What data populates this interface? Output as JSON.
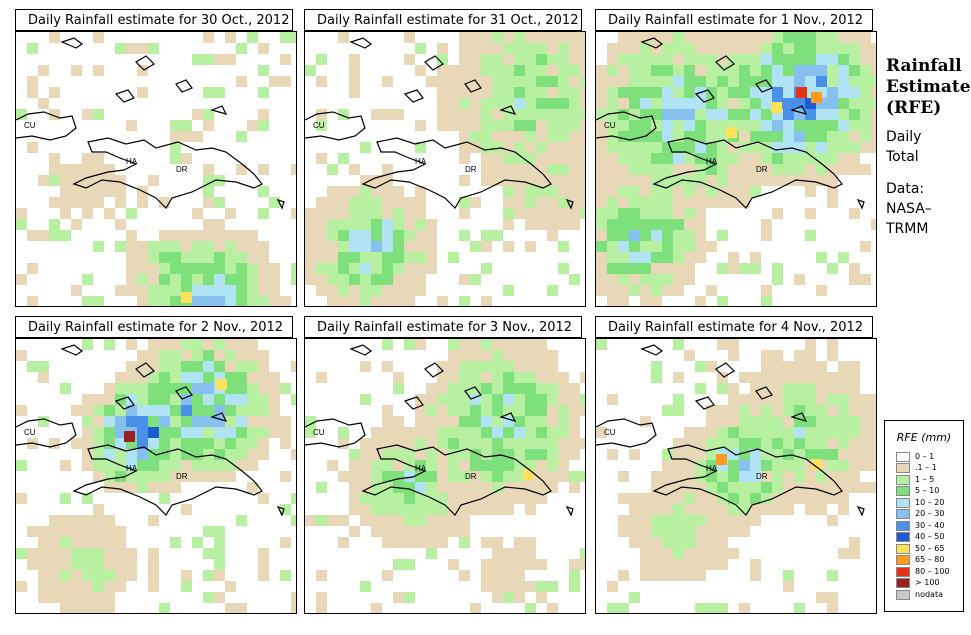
{
  "panels": [
    {
      "title": "Daily Rainfall estimate for  30 Oct., 2012",
      "pattern": "p1"
    },
    {
      "title": "Daily Rainfall estimate for  31 Oct., 2012",
      "pattern": "p2"
    },
    {
      "title": "Daily Rainfall estimate for  1 Nov., 2012",
      "pattern": "p3"
    },
    {
      "title": "Daily Rainfall estimate for  2 Nov., 2012",
      "pattern": "p4"
    },
    {
      "title": "Daily Rainfall estimate for  3 Nov., 2012",
      "pattern": "p5"
    },
    {
      "title": "Daily Rainfall estimate for  4 Nov., 2012",
      "pattern": "p6"
    }
  ],
  "map_labels": {
    "cu": "CU",
    "ha": "HA",
    "dr": "DR"
  },
  "sidebar": {
    "title_line1": "Rainfall",
    "title_line2": "Estimate",
    "title_line3": "(RFE)",
    "daily_line1": "Daily",
    "daily_line2": "Total",
    "data_line1": "Data:",
    "data_line2": "NASA–",
    "data_line3": "TRMM"
  },
  "legend": {
    "title": "RFE (mm)",
    "items": [
      {
        "label": "0 – 1",
        "color": "#ffffff"
      },
      {
        "label": ".1 – 1",
        "color": "#e8d8b8"
      },
      {
        "label": "1 – 5",
        "color": "#b6f0a0"
      },
      {
        "label": "5 – 10",
        "color": "#7ee07a"
      },
      {
        "label": "10 – 20",
        "color": "#b0e4f4"
      },
      {
        "label": "20 – 30",
        "color": "#86c0ee"
      },
      {
        "label": "30 – 40",
        "color": "#4a90e8"
      },
      {
        "label": "40 – 50",
        "color": "#1e5ad2"
      },
      {
        "label": "50 – 65",
        "color": "#ffe05a"
      },
      {
        "label": "65 – 80",
        "color": "#ff9a1e"
      },
      {
        "label": "80 – 100",
        "color": "#e83214"
      },
      {
        "label": "> 100",
        "color": "#9a2020"
      },
      {
        "label": "nodata",
        "color": "#c8c8c8"
      }
    ]
  }
}
